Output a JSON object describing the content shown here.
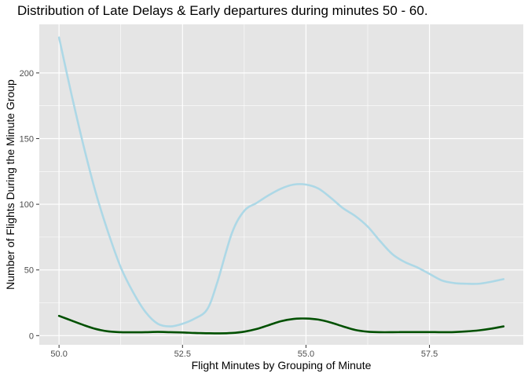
{
  "chart_data": {
    "type": "line",
    "title": "Distribution of Late Delays & Early departures during minutes 50 - 60.",
    "xlabel": "Flight Minutes by Grouping of Minute",
    "ylabel": "Number of Flights During the Minute Group",
    "xlim": [
      49.6,
      59.4
    ],
    "ylim": [
      -7,
      237
    ],
    "x_ticks": [
      {
        "value": 50.0,
        "label": "50.0"
      },
      {
        "value": 52.5,
        "label": "52.5"
      },
      {
        "value": 55.0,
        "label": "55.0"
      },
      {
        "value": 57.5,
        "label": "57.5"
      }
    ],
    "y_ticks": [
      {
        "value": 0,
        "label": "0"
      },
      {
        "value": 50,
        "label": "50"
      },
      {
        "value": 100,
        "label": "100"
      },
      {
        "value": 150,
        "label": "150"
      },
      {
        "value": 200,
        "label": "200"
      }
    ],
    "grid": true,
    "background": "#e5e5e5",
    "grid_color": "#ffffff",
    "series": [
      {
        "color": "#add8e6",
        "x": [
          50.0,
          50.25,
          50.5,
          50.75,
          51.0,
          51.25,
          51.5,
          51.75,
          52.0,
          52.25,
          52.5,
          52.75,
          53.0,
          53.2,
          53.5,
          53.75,
          54.0,
          54.25,
          54.5,
          54.75,
          55.0,
          55.25,
          55.5,
          55.75,
          56.0,
          56.25,
          56.5,
          56.75,
          57.0,
          57.25,
          57.5,
          57.75,
          58.0,
          58.25,
          58.5,
          58.75,
          59.0
        ],
        "values": [
          227,
          184,
          144,
          108,
          78,
          52,
          33,
          18,
          9,
          7,
          9,
          13,
          20,
          40,
          78,
          95,
          101,
          107,
          112,
          115,
          115,
          112,
          105,
          97,
          91,
          83,
          72,
          62,
          56,
          52,
          47,
          42,
          40,
          39.5,
          39.5,
          41,
          43
        ]
      },
      {
        "color": "#005000",
        "x": [
          50.0,
          50.25,
          50.5,
          50.75,
          51.0,
          51.25,
          51.5,
          51.75,
          52.0,
          52.25,
          52.5,
          52.75,
          53.0,
          53.25,
          53.5,
          53.75,
          54.0,
          54.25,
          54.5,
          54.75,
          55.0,
          55.25,
          55.5,
          55.75,
          56.0,
          56.25,
          56.5,
          56.75,
          57.0,
          57.25,
          57.5,
          57.75,
          58.0,
          58.25,
          58.5,
          58.75,
          59.0
        ],
        "values": [
          15,
          11.5,
          8,
          5,
          3.2,
          2.6,
          2.5,
          2.6,
          2.8,
          2.6,
          2.4,
          2,
          1.8,
          1.7,
          2,
          3,
          5,
          8,
          11,
          12.7,
          13,
          12.2,
          10,
          7,
          4.3,
          3,
          2.6,
          2.6,
          2.7,
          2.7,
          2.7,
          2.6,
          2.7,
          3.2,
          4,
          5.3,
          7
        ]
      }
    ]
  }
}
